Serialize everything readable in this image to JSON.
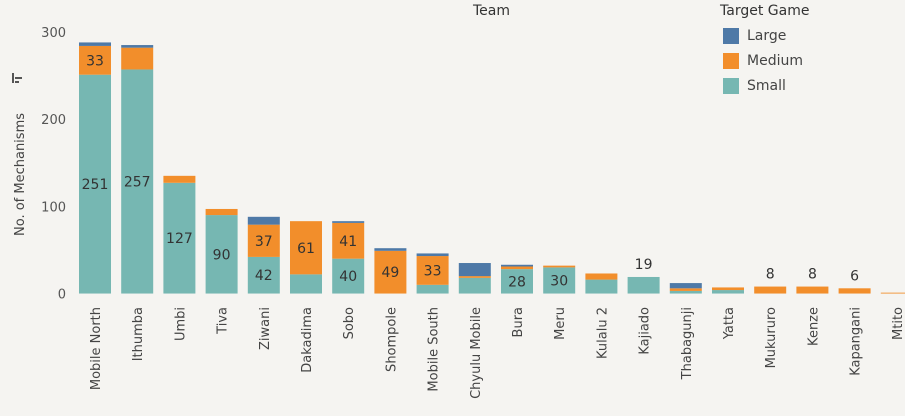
{
  "chart_data": {
    "type": "bar",
    "stacked": true,
    "team_header": "Team",
    "ylabel": "No. of Mechanisms",
    "ylim": [
      -12,
      308
    ],
    "yticks": [
      0,
      100,
      200,
      300
    ],
    "legend": {
      "title": "Target Game",
      "placement": "top-right",
      "entries": [
        "Large",
        "Medium",
        "Small"
      ]
    },
    "colors": {
      "Large": "#4e79a7",
      "Medium": "#f28e2b",
      "Small": "#76b7b2"
    },
    "categories": [
      "Mobile North",
      "Ithumba",
      "Umbi",
      "Tiva",
      "Ziwani",
      "Dakadima",
      "Sobo",
      "Shompole",
      "Mobile South",
      "Chyulu Mobile",
      "Bura",
      "Meru",
      "Kulalu 2",
      "Kajiado",
      "Thabagunji",
      "Yatta",
      "Mukururo",
      "Kenze",
      "Kapangani",
      "Mtito"
    ],
    "series": [
      {
        "name": "Small",
        "values": [
          251,
          257,
          127,
          90,
          42,
          22,
          40,
          0,
          10,
          18,
          28,
          30,
          16,
          19,
          3,
          4,
          0,
          0,
          0,
          0
        ]
      },
      {
        "name": "Medium",
        "values": [
          33,
          25,
          8,
          7,
          37,
          61,
          41,
          49,
          33,
          2,
          3,
          2,
          7,
          0,
          3,
          3,
          8,
          8,
          6,
          1
        ]
      },
      {
        "name": "Large",
        "values": [
          4,
          3,
          0,
          0,
          9,
          0,
          2,
          3,
          3,
          15,
          2,
          0,
          0,
          0,
          6,
          0,
          0,
          0,
          0,
          0
        ]
      }
    ],
    "data_labels": [
      {
        "category": "Mobile North",
        "series": "Medium",
        "text": "33"
      },
      {
        "category": "Mobile North",
        "series": "Small",
        "text": "251"
      },
      {
        "category": "Ithumba",
        "series": "Small",
        "text": "257"
      },
      {
        "category": "Umbi",
        "series": "Small",
        "text": "127"
      },
      {
        "category": "Tiva",
        "series": "Small",
        "text": "90"
      },
      {
        "category": "Ziwani",
        "series": "Medium",
        "text": "37"
      },
      {
        "category": "Ziwani",
        "series": "Small",
        "text": "42"
      },
      {
        "category": "Dakadima",
        "series": "Medium",
        "text": "61"
      },
      {
        "category": "Sobo",
        "series": "Medium",
        "text": "41"
      },
      {
        "category": "Sobo",
        "series": "Small",
        "text": "40"
      },
      {
        "category": "Shompole",
        "series": "Medium",
        "text": "49"
      },
      {
        "category": "Mobile South",
        "series": "Medium",
        "text": "33"
      },
      {
        "category": "Bura",
        "series": "Small",
        "text": "28"
      },
      {
        "category": "Meru",
        "series": "Small",
        "text": "30"
      },
      {
        "category": "Kajiado",
        "series": "total",
        "text": "19"
      },
      {
        "category": "Mukururo",
        "series": "total",
        "text": "8"
      },
      {
        "category": "Kenze",
        "series": "total",
        "text": "8"
      },
      {
        "category": "Kapangani",
        "series": "total",
        "text": "6"
      }
    ]
  }
}
